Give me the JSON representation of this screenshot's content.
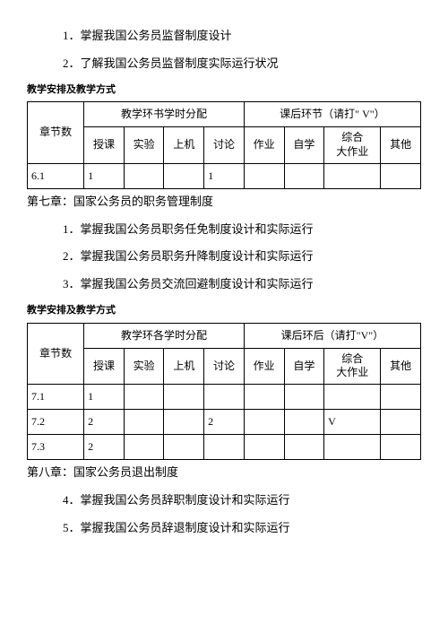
{
  "intro": {
    "item1": "1．掌握我国公务员监督制度设计",
    "item2": "2．了解我国公务员监督制度实际运行状况"
  },
  "section_label": "教学安排及教学方式",
  "table1": {
    "group1": "教学环书学时分配",
    "group2": "课后环节（请打\" V\"）",
    "cols": {
      "c1": "章节数",
      "c2": "授课",
      "c3": "实验",
      "c4": "上机",
      "c5": "讨论",
      "c6": "作业",
      "c7": "自学",
      "c8a": "综合",
      "c8b": "大作业",
      "c9": "其他"
    },
    "row1": {
      "c1": "6.1",
      "c2": "1",
      "c3": "",
      "c4": "",
      "c5": "1",
      "c6": "",
      "c7": "",
      "c8": "",
      "c9": ""
    }
  },
  "chapter7": {
    "title": "第七章：国家公务员的职务管理制度",
    "item1": "1．掌握我国公务员职务任免制度设计和实际运行",
    "item2": "2．掌握我国公务员职务升降制度设计和实际运行",
    "item3": "3．掌握我国公务员交流回避制度设计和实际运行"
  },
  "table2": {
    "group1": "教学环各学时分配",
    "group2": "课后环后（请打\"V\"）",
    "cols": {
      "c1": "章节数",
      "c2": "授课",
      "c3": "实验",
      "c4": "上机",
      "c5": "讨论",
      "c6": "作业",
      "c7": "自学",
      "c8a": "综合",
      "c8b": "大作业",
      "c9": "其他"
    },
    "row1": {
      "c1": "7.1",
      "c2": "1",
      "c3": "",
      "c4": "",
      "c5": "",
      "c6": "",
      "c7": "",
      "c8": "",
      "c9": ""
    },
    "row2": {
      "c1": "7.2",
      "c2": "2",
      "c3": "",
      "c4": "",
      "c5": "2",
      "c6": "",
      "c7": "",
      "c8": "V",
      "c9": ""
    },
    "row3": {
      "c1": "7.3",
      "c2": "2",
      "c3": "",
      "c4": "",
      "c5": "",
      "c6": "",
      "c7": "",
      "c8": "",
      "c9": ""
    }
  },
  "chapter8": {
    "title": "第八章：国家公务员退出制度",
    "item4": "4．掌握我国公务员辞职制度设计和实际运行",
    "item5": "5．掌握我国公务员辞退制度设计和实际运行"
  }
}
